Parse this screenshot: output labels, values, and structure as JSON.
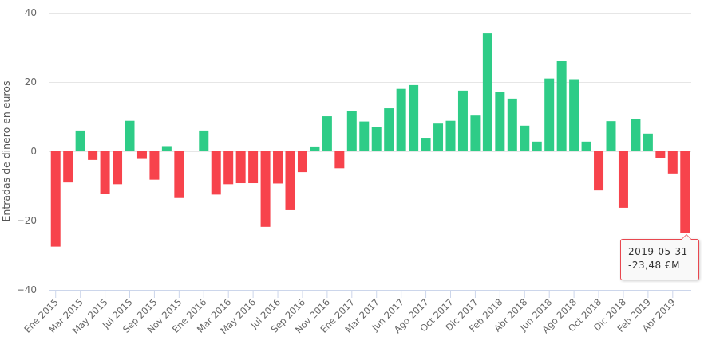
{
  "chart_data": {
    "type": "bar",
    "title": "",
    "xlabel": "",
    "ylabel": "Entradas de dinero en euros",
    "ylim": [
      -40,
      40
    ],
    "yticks": [
      40,
      20,
      0,
      -20,
      -40
    ],
    "grid": true,
    "legend": "none",
    "colors": {
      "positive": "#2ecc87",
      "negative": "#f7434c"
    },
    "categories": [
      "Ene 2015",
      "",
      "Mar 2015",
      "",
      "May 2015",
      "",
      "Jul 2015",
      "",
      "Sep 2015",
      "",
      "Nov 2015",
      "",
      "Ene 2016",
      "",
      "Mar 2016",
      "",
      "May 2016",
      "",
      "Jul 2016",
      "",
      "Sep 2016",
      "",
      "Nov 2016",
      "",
      "Ene 2017",
      "",
      "Mar 2017",
      "",
      "Jun 2017",
      "",
      "Ago 2017",
      "",
      "Oct 2017",
      "",
      "Dic 2017",
      "",
      "Feb 2018",
      "",
      "Abr 2018",
      "",
      "Jun 2018",
      "",
      "Ago 2018",
      "",
      "Oct 2018",
      "",
      "Dic 2018",
      "",
      "Feb 2019",
      "",
      "Abr 2019",
      ""
    ],
    "values": [
      -27.5,
      -9,
      6,
      -2.5,
      -12.2,
      -9.5,
      8.8,
      -2.2,
      -8.2,
      1.5,
      -13.5,
      0,
      6,
      -12.5,
      -9.5,
      -9.2,
      -9.2,
      -21.8,
      -9.3,
      -17,
      -6,
      1.4,
      10.1,
      -4.9,
      11.7,
      8.6,
      6.9,
      12.4,
      18,
      19.1,
      3.9,
      8,
      8.8,
      17.5,
      10.3,
      34,
      17.2,
      15.2,
      7.4,
      2.8,
      21,
      26,
      20.8,
      2.8,
      -11.3,
      8.7,
      -16.3,
      9.4,
      5.1,
      -1.9,
      -6.4,
      -23.48
    ],
    "tooltip": {
      "date": "2019-05-31",
      "value": "-23,48 €M"
    }
  }
}
